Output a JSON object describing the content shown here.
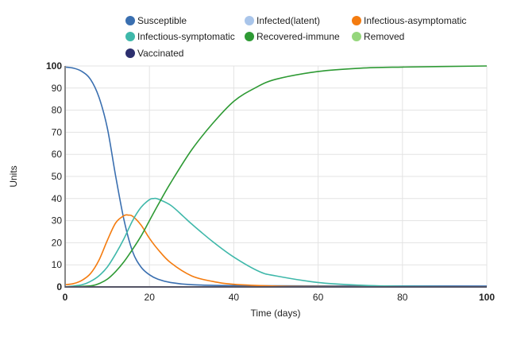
{
  "chart_data": {
    "type": "line",
    "title": "",
    "xlabel": "Time (days)",
    "ylabel": "Units",
    "xlim": [
      0,
      100
    ],
    "ylim": [
      0,
      100
    ],
    "xticks": [
      0,
      20,
      40,
      60,
      80,
      100
    ],
    "yticks": [
      0,
      10,
      20,
      30,
      40,
      50,
      60,
      70,
      80,
      90,
      100
    ],
    "grid": true,
    "legend_position": "top",
    "series": [
      {
        "name": "Susceptible",
        "color": "#3a6fb0",
        "points": [
          [
            0,
            99.5
          ],
          [
            2,
            99
          ],
          [
            4,
            97.5
          ],
          [
            6,
            94
          ],
          [
            8,
            86
          ],
          [
            10,
            72
          ],
          [
            12,
            50
          ],
          [
            14,
            30
          ],
          [
            16,
            16
          ],
          [
            18,
            9
          ],
          [
            20,
            5.5
          ],
          [
            22,
            3.5
          ],
          [
            25,
            2
          ],
          [
            30,
            1
          ],
          [
            40,
            0.6
          ],
          [
            50,
            0.5
          ],
          [
            100,
            0.4
          ]
        ]
      },
      {
        "name": "Infected(latent)",
        "color": "#a9c5ea",
        "points": [
          [
            0,
            0
          ],
          [
            100,
            0
          ]
        ]
      },
      {
        "name": "Infectious-asymptomatic",
        "color": "#f47c10",
        "points": [
          [
            0,
            1
          ],
          [
            2,
            1.5
          ],
          [
            4,
            3
          ],
          [
            6,
            6
          ],
          [
            8,
            12
          ],
          [
            10,
            21
          ],
          [
            12,
            29
          ],
          [
            14,
            32.3
          ],
          [
            15,
            32.5
          ],
          [
            16,
            32
          ],
          [
            18,
            28
          ],
          [
            20,
            22
          ],
          [
            22,
            17
          ],
          [
            25,
            11
          ],
          [
            30,
            5
          ],
          [
            35,
            2.5
          ],
          [
            40,
            1.2
          ],
          [
            50,
            0.4
          ],
          [
            60,
            0.2
          ],
          [
            100,
            0
          ]
        ]
      },
      {
        "name": "Infectious-symptomatic",
        "color": "#3fb8aa",
        "points": [
          [
            0,
            0
          ],
          [
            4,
            1
          ],
          [
            6,
            2.5
          ],
          [
            8,
            5
          ],
          [
            10,
            9
          ],
          [
            12,
            15
          ],
          [
            14,
            22
          ],
          [
            16,
            30
          ],
          [
            18,
            36
          ],
          [
            20,
            39.5
          ],
          [
            21,
            40
          ],
          [
            22,
            39.8
          ],
          [
            25,
            37
          ],
          [
            28,
            32
          ],
          [
            30,
            28.5
          ],
          [
            35,
            20.5
          ],
          [
            40,
            13.5
          ],
          [
            46,
            7
          ],
          [
            50,
            5
          ],
          [
            60,
            2
          ],
          [
            70,
            0.8
          ],
          [
            80,
            0.3
          ],
          [
            100,
            0
          ]
        ]
      },
      {
        "name": "Recovered-immune",
        "color": "#2e9a34",
        "points": [
          [
            0,
            0
          ],
          [
            6,
            0.5
          ],
          [
            8,
            1.5
          ],
          [
            10,
            3.5
          ],
          [
            12,
            7
          ],
          [
            14,
            11.5
          ],
          [
            16,
            17
          ],
          [
            18,
            23
          ],
          [
            20,
            30
          ],
          [
            22,
            37
          ],
          [
            25,
            47
          ],
          [
            30,
            62
          ],
          [
            35,
            74
          ],
          [
            40,
            84
          ],
          [
            45,
            90
          ],
          [
            50,
            94
          ],
          [
            60,
            97.5
          ],
          [
            70,
            99
          ],
          [
            80,
            99.5
          ],
          [
            100,
            100
          ]
        ]
      },
      {
        "name": "Removed",
        "color": "#95d67c",
        "points": [
          [
            0,
            0
          ],
          [
            100,
            0
          ]
        ]
      },
      {
        "name": "Vaccinated",
        "color": "#2c2f6e",
        "points": [
          [
            0,
            0
          ],
          [
            100,
            0
          ]
        ]
      }
    ]
  }
}
